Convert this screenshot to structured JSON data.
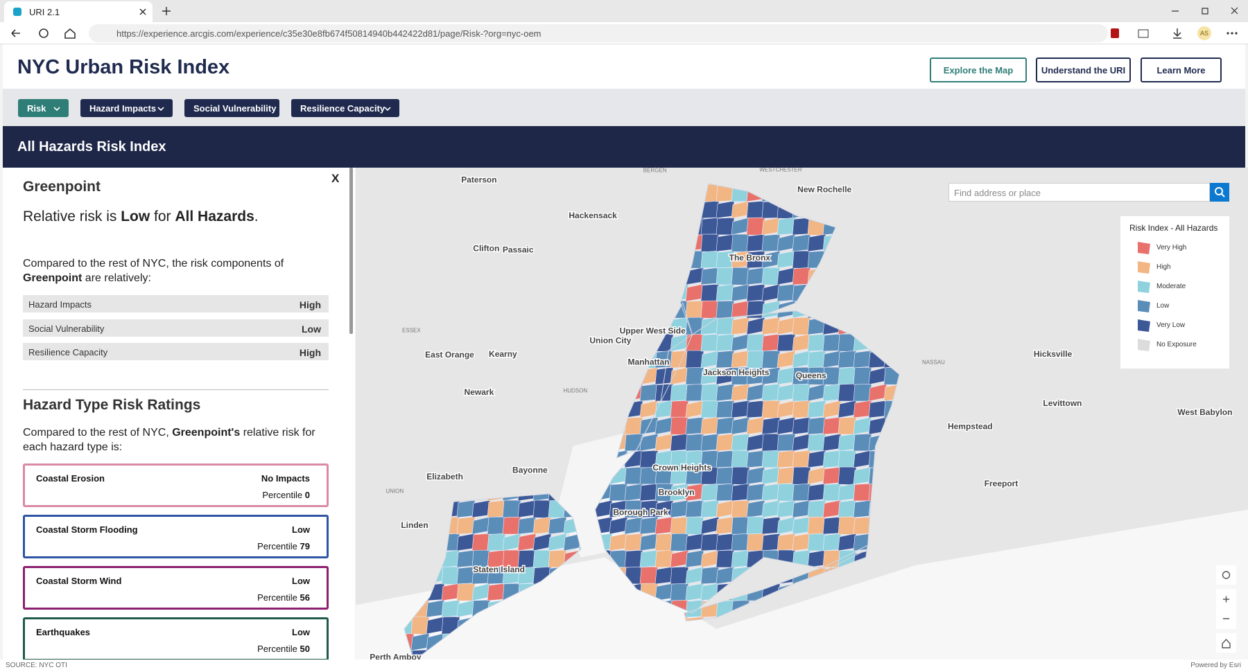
{
  "browser": {
    "tab_title": "URI 2.1",
    "url": "https://experience.arcgis.com/experience/c35e30e8fb674f50814940b442422d81/page/Risk-?org=nyc-oem",
    "profile": "AS"
  },
  "header": {
    "title": "NYC Urban Risk Index",
    "buttons": [
      "Explore the Map",
      "Understand the URI",
      "Learn More"
    ]
  },
  "nav": [
    "Risk",
    "Hazard Impacts",
    "Social Vulnerability",
    "Resilience Capacity"
  ],
  "banner": "All Hazards Risk Index",
  "panel": {
    "close": "X",
    "place": "Greenpoint",
    "risk_sentence": [
      "Relative risk is ",
      "Low",
      " for ",
      "All Hazards",
      "."
    ],
    "components_intro": [
      "Compared to the rest of NYC, the risk components of ",
      "Greenpoint",
      " are relatively:"
    ],
    "components": [
      [
        "Hazard Impacts",
        "High"
      ],
      [
        "Social Vulnerability",
        "Low"
      ],
      [
        "Resilience Capacity",
        "High"
      ]
    ],
    "hazard_title": "Hazard Type Risk Ratings",
    "hazard_intro": [
      "Compared to the rest of NYC, ",
      "Greenpoint's",
      " relative risk for each hazard type is:"
    ],
    "hazards": [
      {
        "name": "Coastal Erosion",
        "rating": "No Impacts",
        "percentile_label": "Percentile",
        "percentile": "0",
        "color": "#d98aa2"
      },
      {
        "name": "Coastal Storm Flooding",
        "rating": "Low",
        "percentile_label": "Percentile",
        "percentile": "79",
        "color": "#2d55a3"
      },
      {
        "name": "Coastal Storm Wind",
        "rating": "Low",
        "percentile_label": "Percentile",
        "percentile": "56",
        "color": "#8c1f6e"
      },
      {
        "name": "Earthquakes",
        "rating": "Low",
        "percentile_label": "Percentile",
        "percentile": "50",
        "color": "#1f5a4c"
      }
    ]
  },
  "map": {
    "search_placeholder": "Find address or place",
    "legend": {
      "title": "Risk Index - All Hazards",
      "items": [
        {
          "label": "Very High",
          "color": "#e8716b"
        },
        {
          "label": "High",
          "color": "#f2b584"
        },
        {
          "label": "Moderate",
          "color": "#8fd2de"
        },
        {
          "label": "Low",
          "color": "#5b8db9"
        },
        {
          "label": "Very Low",
          "color": "#3c5897"
        },
        {
          "label": "No Exposure",
          "color": "#dcdcdc"
        }
      ]
    },
    "places": [
      "Paterson",
      "New Rochelle",
      "Hackensack",
      "Clifton",
      "Passaic",
      "The Bronx",
      "Union City",
      "Upper West Side",
      "Manhattan",
      "Jackson Heights",
      "Queens",
      "East Orange",
      "Kearny",
      "Newark",
      "Hicksville",
      "Levittown",
      "Hempstead",
      "West Babylon",
      "Elizabeth",
      "Bayonne",
      "Crown Heights",
      "Brooklyn",
      "Borough Park",
      "Freeport",
      "Linden",
      "Staten Island",
      "Perth Amboy"
    ],
    "counties": [
      "BERGEN",
      "WESTCHESTER",
      "ESSEX",
      "HUDSON",
      "NASSAU",
      "UNION"
    ]
  },
  "footer": {
    "source": "SOURCE: NYC OTI",
    "credit": "Powered by Esri"
  }
}
